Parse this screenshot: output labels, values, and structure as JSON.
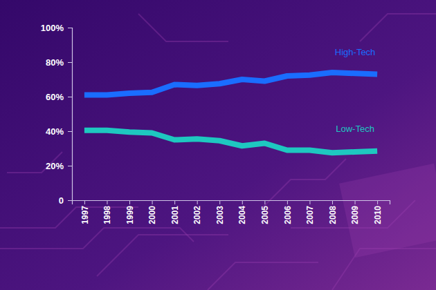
{
  "chart_data": {
    "type": "line",
    "categories": [
      "1997",
      "1998",
      "1999",
      "2000",
      "2001",
      "2002",
      "2003",
      "2004",
      "2005",
      "2006",
      "2007",
      "2008",
      "2009",
      "2010"
    ],
    "series": [
      {
        "name": "High-Tech",
        "color": "#1a6dff",
        "values": [
          61,
          61,
          62,
          62.5,
          67,
          66.5,
          67.5,
          70,
          69,
          72,
          72.5,
          74,
          73.5,
          73
        ]
      },
      {
        "name": "Low-Tech",
        "color": "#1ec8c0",
        "values": [
          40.5,
          40.5,
          39.5,
          39,
          35,
          35.5,
          34.5,
          31.5,
          33,
          29,
          29,
          27.5,
          28,
          28.5
        ]
      }
    ],
    "ylim": [
      0,
      100
    ],
    "yticks": [
      0,
      {
        "value": 20,
        "label": "20%"
      },
      {
        "value": 40,
        "label": "40%"
      },
      {
        "value": 60,
        "label": "60%"
      },
      {
        "value": 80,
        "label": "80%"
      },
      {
        "value": 100,
        "label": "100%"
      }
    ],
    "grid": false
  }
}
